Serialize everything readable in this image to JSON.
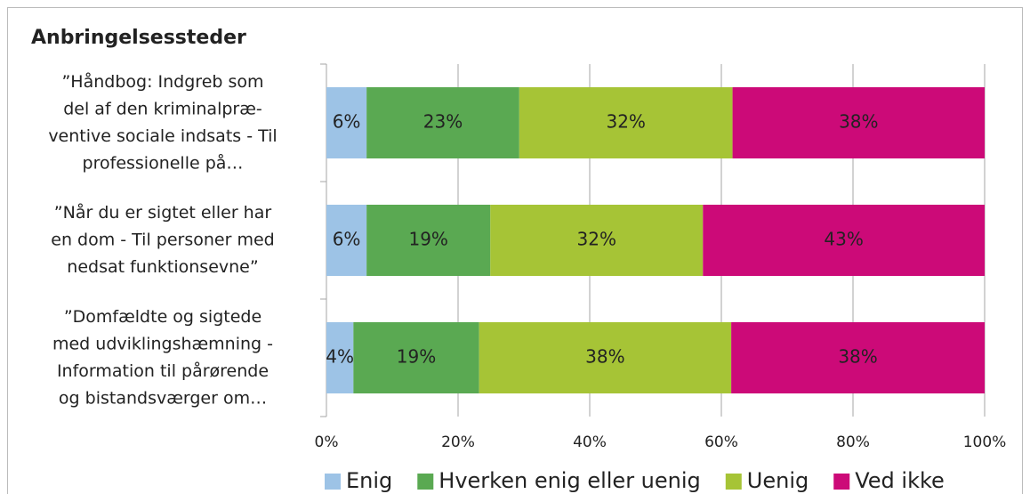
{
  "chart_data": {
    "type": "stacked-bar-horizontal",
    "title": "Anbringelsessteder",
    "categories": [
      [
        "”Håndbog: Indgreb som",
        "del af den kriminalpræ-",
        "ventive sociale indsats - Til",
        "professionelle på…"
      ],
      [
        "”Når du er sigtet eller har",
        "en dom - Til personer med",
        "nedsat funktionsevne”"
      ],
      [
        "”Domfældte og sigtede",
        "med udviklingshæmning  -",
        "Information til pårørende",
        "og bistandsværger om…"
      ]
    ],
    "series": [
      {
        "name": "Enig",
        "color": "#9dc3e6",
        "label_color": "#333333",
        "values": [
          6.1,
          6.1,
          4.1
        ],
        "value_labels": [
          "6%",
          "6%",
          "4%"
        ]
      },
      {
        "name": "Hverken enig eller uenig",
        "color": "#5aa952",
        "label_color": "#333333",
        "values": [
          23.2,
          18.8,
          19.1
        ],
        "value_labels": [
          "23%",
          "19%",
          "19%"
        ]
      },
      {
        "name": "Uenig",
        "color": "#a6c436",
        "label_color": "#333333",
        "values": [
          32.4,
          32.3,
          38.3
        ],
        "value_labels": [
          "32%",
          "32%",
          "38%"
        ]
      },
      {
        "name": "Ved ikke",
        "color": "#cc0a78",
        "label_color": "#7a1030",
        "values": [
          38.3,
          42.8,
          38.5
        ],
        "value_labels": [
          "38%",
          "43%",
          "38%"
        ]
      }
    ],
    "xlim": [
      0,
      100
    ],
    "xticks": [
      {
        "value": 0,
        "label": "0%"
      },
      {
        "value": 20,
        "label": "20%"
      },
      {
        "value": 40,
        "label": "40%"
      },
      {
        "value": 60,
        "label": "60%"
      },
      {
        "value": 80,
        "label": "80%"
      },
      {
        "value": 100,
        "label": "100%"
      }
    ],
    "grid": true,
    "legend": "bottom"
  }
}
